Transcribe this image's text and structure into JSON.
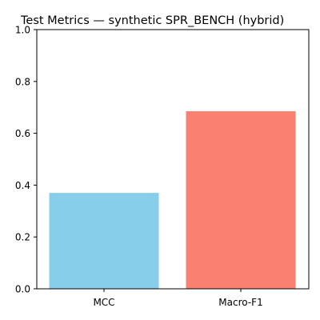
{
  "chart_data": {
    "type": "bar",
    "title": "Test Metrics — synthetic SPR_BENCH (hybrid)",
    "xlabel": "",
    "ylabel": "",
    "categories": [
      "MCC",
      "Macro-F1"
    ],
    "values": [
      0.37,
      0.685
    ],
    "colors": [
      "#87ceeb",
      "#fa8072"
    ],
    "ylim": [
      0.0,
      1.0
    ],
    "yticks": [
      "0.0",
      "0.2",
      "0.4",
      "0.6",
      "0.8",
      "1.0"
    ],
    "grid": false,
    "legend": false
  }
}
